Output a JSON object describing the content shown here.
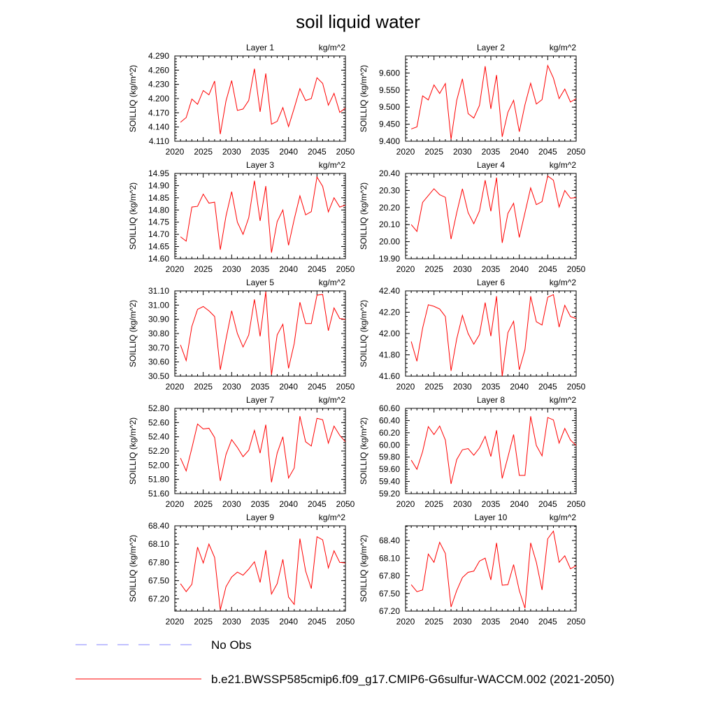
{
  "title": "soil liquid water",
  "chart_data": {
    "type": "line",
    "title": "soil liquid water",
    "ylabel": "SOILLIQ  (kg/m^2)",
    "units": "kg/m^2",
    "x": [
      2021,
      2022,
      2023,
      2024,
      2025,
      2026,
      2027,
      2028,
      2029,
      2030,
      2031,
      2032,
      2033,
      2034,
      2035,
      2036,
      2037,
      2038,
      2039,
      2040,
      2041,
      2042,
      2043,
      2044,
      2045,
      2046,
      2047,
      2048,
      2049,
      2050
    ],
    "xlim": [
      2020,
      2050
    ],
    "xticks": [
      "2020",
      "2025",
      "2030",
      "2035",
      "2040",
      "2045",
      "2050"
    ],
    "series_color": "#ff0000",
    "panels": [
      {
        "name": "Layer 1",
        "units": "kg/m^2",
        "ylim": [
          4.11,
          4.29
        ],
        "yticks": [
          "4.110",
          "4.140",
          "4.170",
          "4.200",
          "4.230",
          "4.260",
          "4.290"
        ],
        "values": [
          4.15,
          4.16,
          4.199,
          4.188,
          4.217,
          4.208,
          4.237,
          4.125,
          4.195,
          4.238,
          4.175,
          4.178,
          4.196,
          4.263,
          4.172,
          4.253,
          4.146,
          4.152,
          4.181,
          4.141,
          4.18,
          4.221,
          4.196,
          4.2,
          4.244,
          4.232,
          4.186,
          4.211,
          4.171,
          4.18
        ]
      },
      {
        "name": "Layer 2",
        "units": "kg/m^2",
        "ylim": [
          9.4,
          9.65
        ],
        "yticks": [
          "9.400",
          "9.450",
          "9.500",
          "9.550",
          "9.600"
        ],
        "values": [
          9.436,
          9.442,
          9.533,
          9.521,
          9.565,
          9.54,
          9.569,
          9.406,
          9.52,
          9.583,
          9.481,
          9.468,
          9.505,
          9.62,
          9.495,
          9.594,
          9.413,
          9.485,
          9.52,
          9.428,
          9.507,
          9.57,
          9.509,
          9.522,
          9.622,
          9.585,
          9.525,
          9.553,
          9.515,
          9.525
        ]
      },
      {
        "name": "Layer 3",
        "units": "kg/m^2",
        "ylim": [
          14.6,
          14.95
        ],
        "yticks": [
          "14.60",
          "14.65",
          "14.70",
          "14.75",
          "14.80",
          "14.85",
          "14.90",
          "14.95"
        ],
        "values": [
          14.69,
          14.672,
          14.812,
          14.815,
          14.865,
          14.828,
          14.832,
          14.637,
          14.775,
          14.875,
          14.75,
          14.7,
          14.768,
          14.92,
          14.755,
          14.898,
          14.625,
          14.752,
          14.8,
          14.655,
          14.762,
          14.858,
          14.78,
          14.793,
          14.935,
          14.897,
          14.792,
          14.85,
          14.812,
          14.82
        ]
      },
      {
        "name": "Layer 4",
        "units": "kg/m^2",
        "ylim": [
          19.9,
          20.4
        ],
        "yticks": [
          "19.90",
          "20.00",
          "20.10",
          "20.20",
          "20.30",
          "20.40"
        ],
        "values": [
          20.1,
          20.06,
          20.23,
          20.27,
          20.31,
          20.275,
          20.26,
          20.015,
          20.17,
          20.31,
          20.17,
          20.105,
          20.18,
          20.36,
          20.178,
          20.375,
          19.993,
          20.165,
          20.225,
          20.025,
          20.17,
          20.315,
          20.217,
          20.235,
          20.385,
          20.36,
          20.203,
          20.3,
          20.255,
          20.258
        ]
      },
      {
        "name": "Layer 5",
        "units": "kg/m^2",
        "ylim": [
          30.5,
          31.1
        ],
        "yticks": [
          "30.50",
          "30.60",
          "30.70",
          "30.80",
          "30.90",
          "31.00",
          "31.10"
        ],
        "values": [
          30.72,
          30.61,
          30.85,
          30.97,
          30.99,
          30.96,
          30.92,
          30.545,
          30.76,
          30.96,
          30.8,
          30.705,
          30.79,
          31.04,
          30.78,
          31.095,
          30.51,
          30.79,
          30.865,
          30.555,
          30.73,
          31.02,
          30.87,
          30.87,
          31.07,
          31.075,
          30.82,
          30.98,
          30.905,
          30.9
        ]
      },
      {
        "name": "Layer 6",
        "units": "kg/m^2",
        "ylim": [
          41.6,
          42.4
        ],
        "yticks": [
          "41.60",
          "41.80",
          "42.00",
          "42.20",
          "42.40"
        ],
        "values": [
          41.925,
          41.74,
          42.05,
          42.27,
          42.255,
          42.23,
          42.16,
          41.65,
          41.95,
          42.17,
          42.0,
          41.9,
          41.99,
          42.29,
          41.975,
          42.35,
          41.6,
          42.01,
          42.115,
          41.66,
          41.85,
          42.35,
          42.11,
          42.08,
          42.34,
          42.365,
          42.06,
          42.265,
          42.16,
          42.14
        ]
      },
      {
        "name": "Layer 7",
        "units": "kg/m^2",
        "ylim": [
          51.6,
          52.8
        ],
        "yticks": [
          "51.60",
          "51.80",
          "52.00",
          "52.20",
          "52.40",
          "52.60",
          "52.80"
        ],
        "values": [
          52.1,
          51.92,
          52.24,
          52.58,
          52.51,
          52.52,
          52.39,
          51.78,
          52.15,
          52.36,
          52.25,
          52.12,
          52.21,
          52.49,
          52.17,
          52.57,
          51.76,
          52.17,
          52.4,
          51.82,
          51.96,
          52.69,
          52.33,
          52.27,
          52.66,
          52.64,
          52.31,
          52.55,
          52.42,
          52.33
        ]
      },
      {
        "name": "Layer 8",
        "units": "kg/m^2",
        "ylim": [
          59.2,
          60.6
        ],
        "yticks": [
          "59.20",
          "59.40",
          "59.60",
          "59.80",
          "60.00",
          "60.20",
          "60.40",
          "60.60"
        ],
        "values": [
          59.75,
          59.6,
          59.89,
          60.3,
          60.17,
          60.31,
          60.08,
          59.36,
          59.76,
          59.92,
          59.94,
          59.83,
          59.95,
          60.14,
          59.81,
          60.24,
          59.45,
          59.8,
          60.17,
          59.5,
          59.5,
          60.47,
          59.99,
          59.82,
          60.45,
          60.41,
          60.03,
          60.27,
          60.08,
          59.99
        ]
      },
      {
        "name": "Layer 9",
        "units": "kg/m^2",
        "ylim": [
          67.0,
          68.4
        ],
        "yticks": [
          "67.20",
          "67.50",
          "67.80",
          "68.10",
          "68.40"
        ],
        "values": [
          67.45,
          67.32,
          67.44,
          68.05,
          67.79,
          68.1,
          67.88,
          67.02,
          67.4,
          67.56,
          67.64,
          67.59,
          67.69,
          67.81,
          67.47,
          68.0,
          67.28,
          67.45,
          67.85,
          67.23,
          67.11,
          68.19,
          67.66,
          67.37,
          68.22,
          68.17,
          67.71,
          67.99,
          67.8,
          67.79
        ]
      },
      {
        "name": "Layer 10",
        "units": "kg/m^2",
        "ylim": [
          67.2,
          68.65
        ],
        "yticks": [
          "67.20",
          "67.50",
          "67.80",
          "68.10",
          "68.40"
        ],
        "values": [
          67.65,
          67.53,
          67.56,
          68.17,
          68.03,
          68.37,
          68.18,
          67.27,
          67.55,
          67.77,
          67.86,
          67.88,
          68.05,
          68.1,
          67.73,
          68.36,
          67.64,
          67.65,
          67.99,
          67.55,
          67.25,
          68.36,
          68.03,
          67.56,
          68.43,
          68.56,
          68.03,
          68.14,
          67.92,
          67.97
        ]
      }
    ],
    "legend": [
      {
        "label": "No Obs",
        "color": "#8080ff",
        "dash": true
      },
      {
        "label": "b.e21.BWSSP585cmip6.f09_g17.CMIP6-G6sulfur-WACCM.002 (2021-2050)",
        "color": "#ff0000",
        "dash": false
      }
    ]
  }
}
